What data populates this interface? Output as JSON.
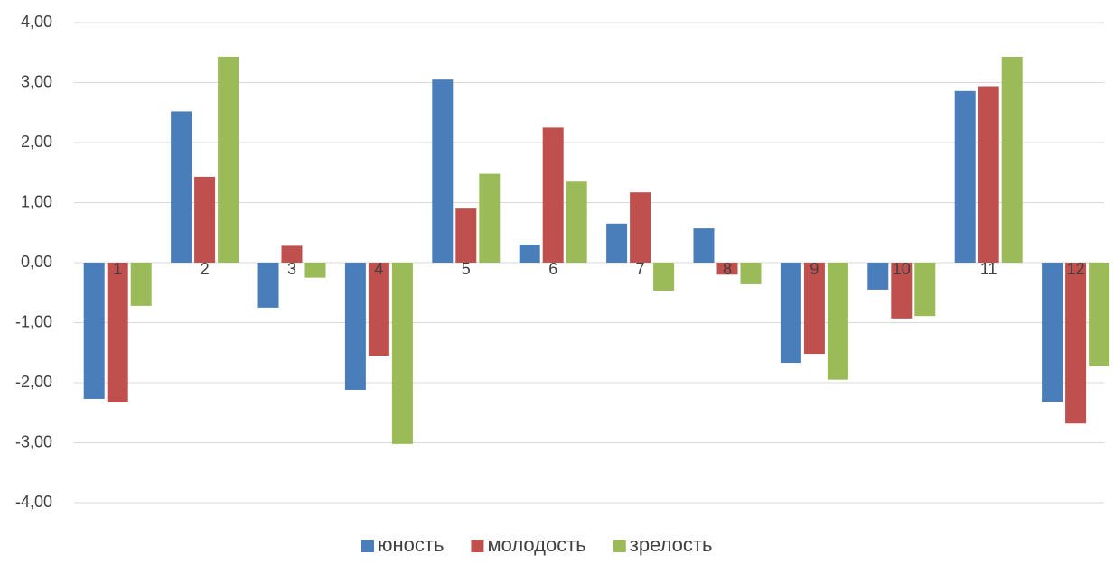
{
  "chart_data": {
    "type": "bar",
    "categories": [
      "1",
      "2",
      "3",
      "4",
      "5",
      "6",
      "7",
      "8",
      "9",
      "10",
      "11",
      "12"
    ],
    "series": [
      {
        "name": "юность",
        "color": "#4a7ebb",
        "values": [
          -2.27,
          2.52,
          -0.75,
          -2.12,
          3.05,
          0.3,
          0.65,
          0.57,
          -1.67,
          -0.45,
          2.86,
          -2.32
        ]
      },
      {
        "name": "молодость",
        "color": "#c0504d",
        "values": [
          -2.33,
          1.43,
          0.28,
          -1.55,
          0.9,
          2.25,
          1.17,
          -0.2,
          -1.52,
          -0.93,
          2.94,
          -2.68
        ]
      },
      {
        "name": "зрелость",
        "color": "#9bbb59",
        "values": [
          -0.72,
          3.43,
          -0.25,
          -3.02,
          1.48,
          1.35,
          -0.47,
          -0.36,
          -1.95,
          -0.89,
          3.43,
          -1.73
        ]
      }
    ],
    "ylim": [
      -4,
      4
    ],
    "yticks": [
      {
        "value": -4,
        "label": "-4,00"
      },
      {
        "value": -3,
        "label": "-3,00"
      },
      {
        "value": -2,
        "label": "-2,00"
      },
      {
        "value": -1,
        "label": "-1,00"
      },
      {
        "value": 0,
        "label": "0,00"
      },
      {
        "value": 1,
        "label": "1,00"
      },
      {
        "value": 2,
        "label": "2,00"
      },
      {
        "value": 3,
        "label": "3,00"
      },
      {
        "value": 4,
        "label": "4,00"
      }
    ],
    "grid": true,
    "legend": "bottom"
  }
}
